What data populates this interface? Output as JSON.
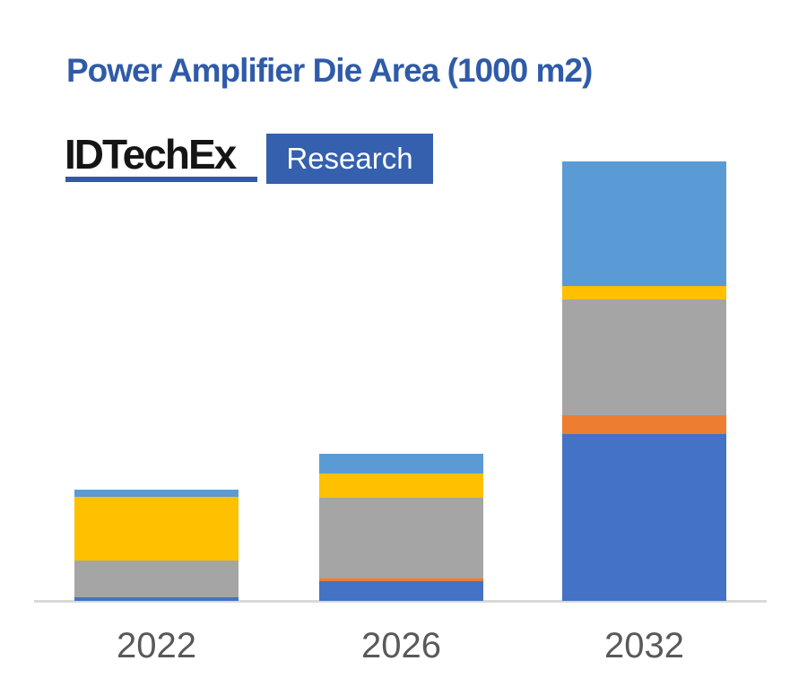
{
  "header": {
    "title": "Power Amplifier Die Area (1000 m2)",
    "logo": {
      "wordmark": "IDTechEx",
      "badge": "Research"
    }
  },
  "colors": {
    "title_blue": "#2F5BA8",
    "logo_underline_blue": "#2E5AA9",
    "badge_background_blue": "#3560AD",
    "axis_line_gray": "#D9D9D9",
    "axis_label_gray": "#595959",
    "background": "#FFFFFF"
  },
  "chart_data": {
    "type": "bar",
    "stacked": true,
    "title": "Power Amplifier Die Area (1000 m2)",
    "xlabel": "",
    "ylabel": "",
    "categories": [
      "2022",
      "2026",
      "2032"
    ],
    "series": [
      {
        "name": "segment-dark-blue",
        "color": "#4472C4",
        "values": [
          0.82,
          4.49,
          37.96
        ]
      },
      {
        "name": "segment-orange",
        "color": "#ED7D31",
        "values": [
          0.0,
          0.61,
          4.29
        ]
      },
      {
        "name": "segment-gray",
        "color": "#A5A5A5",
        "values": [
          8.37,
          18.37,
          26.33
        ]
      },
      {
        "name": "segment-yellow",
        "color": "#FFC000",
        "values": [
          14.49,
          5.51,
          3.06
        ]
      },
      {
        "name": "segment-light-blue",
        "color": "#5B9BD5",
        "values": [
          1.63,
          4.49,
          28.37
        ]
      }
    ],
    "stack_order": "bottom-to-top as listed",
    "totals": [
      25.31,
      33.47,
      100.0
    ],
    "units": "relative units estimated from bar heights (no y-axis shown; 2032 total normalized to 100)",
    "ylim": [
      0,
      100
    ],
    "legend_position": "none",
    "gridlines": false,
    "y_axis_labels_visible": false
  }
}
